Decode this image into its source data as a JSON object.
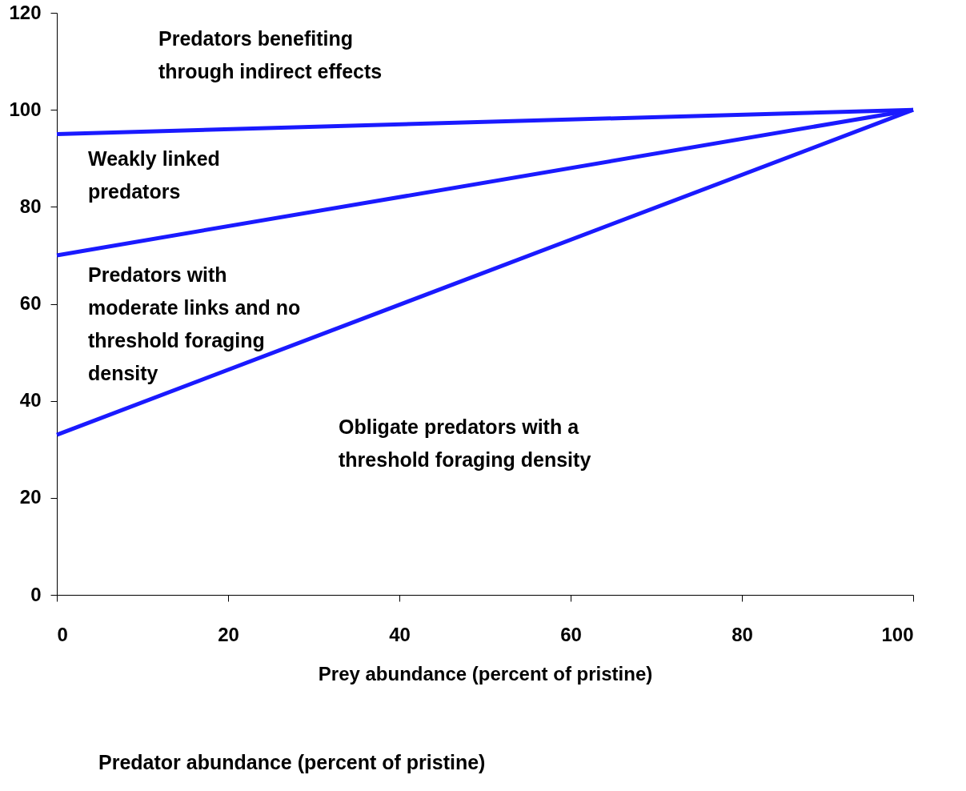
{
  "chart_data": {
    "type": "line",
    "xlabel": "Prey abundance (percent of pristine)",
    "xlim": [
      0,
      100
    ],
    "ylim": [
      0,
      120
    ],
    "xticks": [
      0,
      20,
      40,
      60,
      80,
      100
    ],
    "yticks": [
      0,
      20,
      40,
      60,
      80,
      100,
      120
    ],
    "marker": "none",
    "line_style": "solid",
    "x": [
      0,
      100
    ],
    "series": [
      {
        "color": "#1a1aff",
        "values": [
          95,
          100
        ]
      },
      {
        "color": "#1a1aff",
        "values": [
          70,
          100
        ]
      },
      {
        "color": "#1a1aff",
        "values": [
          33,
          100
        ]
      }
    ],
    "annotations": [
      "Predators benefiting\nthrough indirect effects",
      "Weakly linked\npredators",
      "Predators with\nmoderate links and no\nthreshold foraging\ndensity",
      "Obligate predators with a\nthreshold foraging density",
      "Predator abundance (percent of pristine)"
    ]
  }
}
